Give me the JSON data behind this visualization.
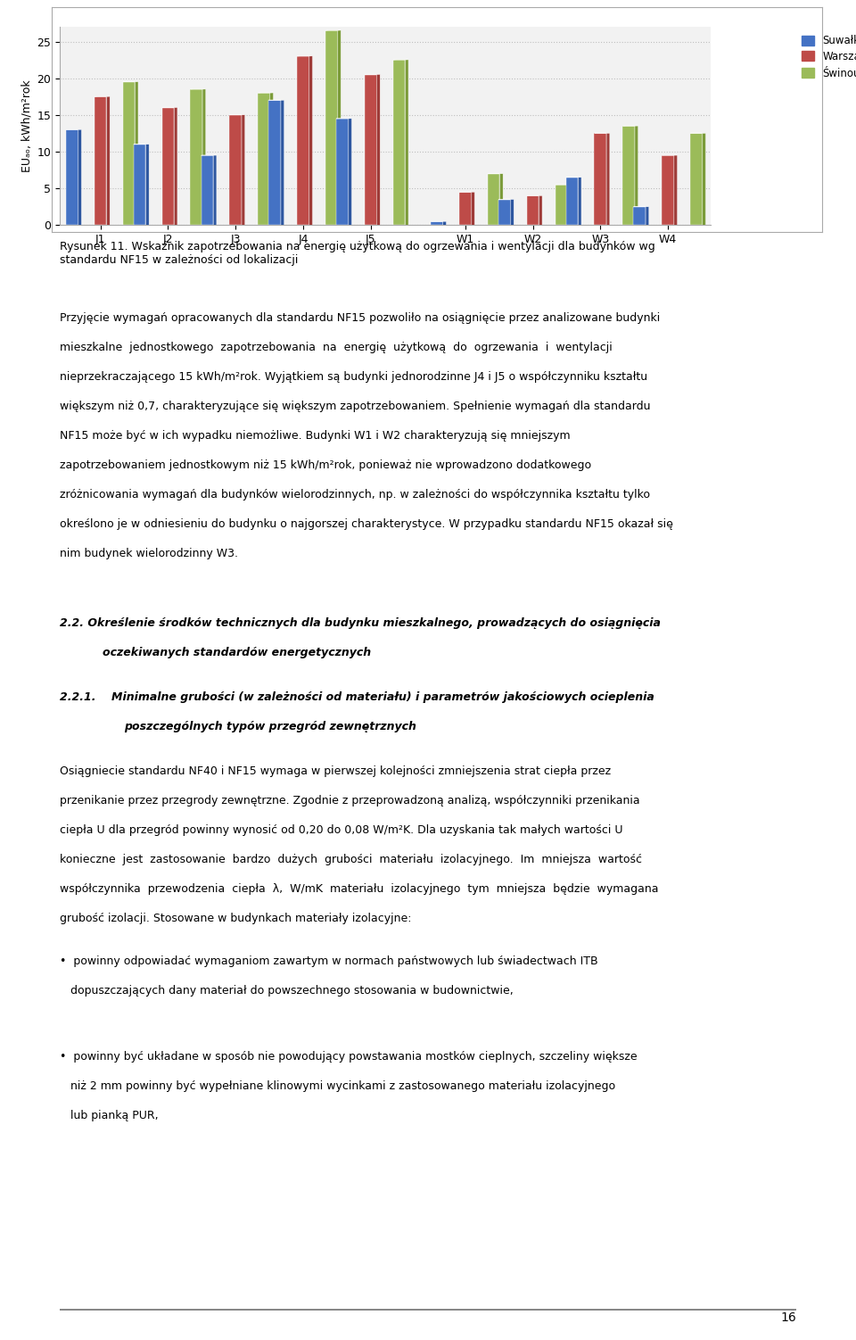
{
  "groups": [
    "J1",
    "J2",
    "J3",
    "J4",
    "J5",
    "W1",
    "W2",
    "W3",
    "W4"
  ],
  "series": {
    "Suwałki": {
      "values": [
        13.0,
        11.0,
        9.5,
        17.0,
        14.5,
        0.5,
        3.5,
        6.5,
        2.5
      ],
      "color_front": "#4472C4",
      "color_top": "#5B87D4",
      "color_side": "#2E57A0"
    },
    "Warszawa": {
      "values": [
        17.5,
        16.0,
        15.0,
        23.0,
        20.5,
        4.5,
        4.0,
        12.5,
        9.5
      ],
      "color_front": "#BE4B48",
      "color_top": "#CE6B68",
      "color_side": "#9E3B38"
    },
    "Świnoujście": {
      "values": [
        19.5,
        18.5,
        18.0,
        26.5,
        22.5,
        7.0,
        5.5,
        13.5,
        12.5
      ],
      "color_front": "#9BBB59",
      "color_top": "#AFCF6D",
      "color_side": "#7B9B39"
    }
  },
  "ylabel": "EUₐₒ, kWh/m²rok",
  "ylim": [
    0,
    27
  ],
  "yticks": [
    0,
    5,
    10,
    15,
    20,
    25
  ],
  "grid_color": "#BFBFBF",
  "bg_color": "#FFFFFF",
  "figure_width": 9.6,
  "figure_height": 15.02,
  "legend_labels": [
    "Suwałki",
    "Warszawa",
    "Świnoujście"
  ],
  "legend_colors": [
    "#4472C4",
    "#BE4B48",
    "#9BBB59"
  ]
}
